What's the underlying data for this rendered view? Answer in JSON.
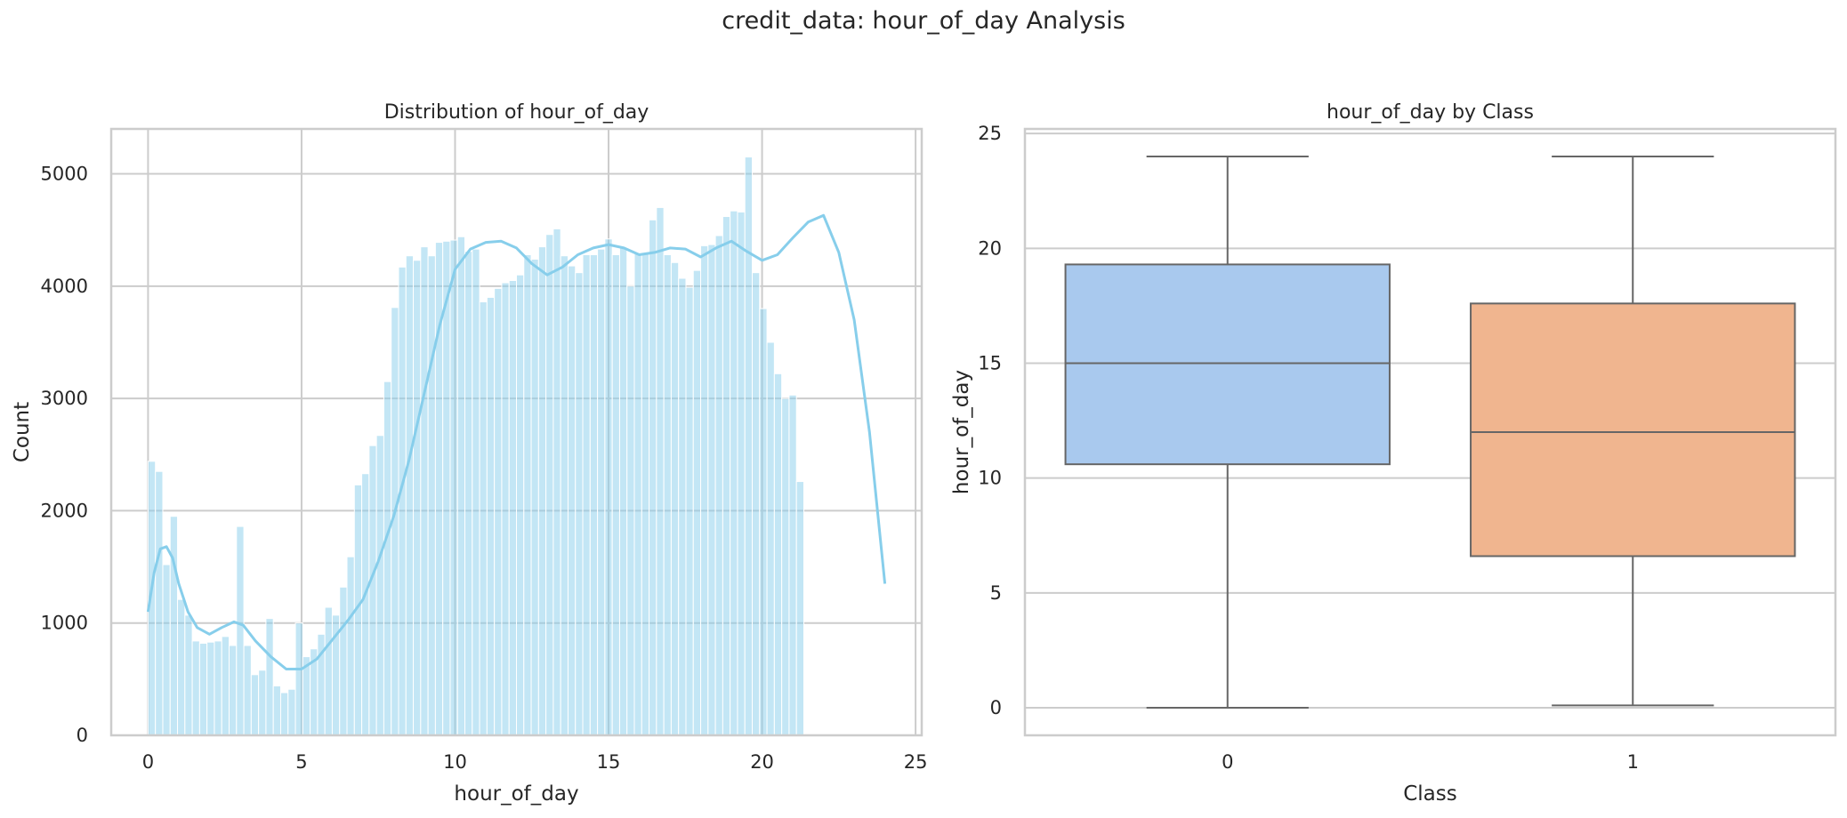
{
  "suptitle": "credit_data: hour_of_day Analysis",
  "chart_data": [
    {
      "type": "histogram",
      "title": "Distribution of hour_of_day",
      "xlabel": "hour_of_day",
      "ylabel": "Count",
      "xlim": [
        -1.2,
        25.2
      ],
      "ylim": [
        0,
        5400
      ],
      "xticks": [
        0,
        5,
        10,
        15,
        20,
        25
      ],
      "yticks": [
        0,
        1000,
        2000,
        3000,
        4000,
        5000
      ],
      "grid": true,
      "bin_start": 0,
      "bin_width": 0.24,
      "counts": [
        2440,
        2350,
        1520,
        1950,
        1210,
        1070,
        840,
        820,
        830,
        840,
        880,
        800,
        1860,
        800,
        540,
        580,
        1040,
        440,
        380,
        410,
        1000,
        700,
        770,
        900,
        1140,
        1070,
        1320,
        1590,
        2230,
        2330,
        2580,
        2670,
        3150,
        3810,
        4170,
        4270,
        4230,
        4350,
        4270,
        4390,
        4400,
        4410,
        4440,
        4310,
        4330,
        3860,
        3900,
        3980,
        4030,
        4050,
        4100,
        4280,
        4240,
        4350,
        4460,
        4510,
        4270,
        4180,
        4120,
        4280,
        4280,
        4330,
        4420,
        4280,
        4340,
        4000,
        4290,
        4300,
        4590,
        4700,
        4280,
        4210,
        4070,
        3990,
        4140,
        4360,
        4370,
        4450,
        4620,
        4670,
        4660,
        5150,
        4120,
        3800,
        3500,
        3220,
        3000,
        3030,
        2260
      ],
      "kde": {
        "x": [
          0,
          0.2,
          0.4,
          0.6,
          0.8,
          1,
          1.3,
          1.6,
          2,
          2.4,
          2.8,
          3.1,
          3.5,
          4,
          4.5,
          5,
          5.5,
          6,
          6.5,
          7,
          7.5,
          8,
          8.5,
          9,
          9.5,
          10,
          10.5,
          11,
          11.5,
          12,
          12.5,
          13,
          13.5,
          14,
          14.5,
          15,
          15.5,
          16,
          16.5,
          17,
          17.5,
          18,
          18.5,
          19,
          19.5,
          20,
          20.5,
          21,
          21.5,
          22,
          22.5,
          23,
          23.5,
          24
        ],
        "y": [
          1100,
          1450,
          1660,
          1680,
          1580,
          1350,
          1100,
          960,
          900,
          960,
          1010,
          980,
          840,
          700,
          590,
          590,
          680,
          850,
          1020,
          1210,
          1550,
          1950,
          2450,
          3050,
          3650,
          4150,
          4330,
          4390,
          4400,
          4340,
          4200,
          4100,
          4170,
          4280,
          4340,
          4370,
          4340,
          4280,
          4300,
          4340,
          4330,
          4260,
          4340,
          4400,
          4310,
          4230,
          4280,
          4430,
          4570,
          4630,
          4300,
          3700,
          2700,
          1350
        ]
      },
      "bar_color": "#87ceeb",
      "line_color": "#87ceeb"
    },
    {
      "type": "box",
      "title": "hour_of_day by Class",
      "xlabel": "Class",
      "ylabel": "hour_of_day",
      "categories": [
        "0",
        "1"
      ],
      "ylim": [
        -1.2,
        25.2
      ],
      "yticks": [
        0,
        5,
        10,
        15,
        20,
        25
      ],
      "grid": true,
      "boxes": [
        {
          "min": 0,
          "q1": 10.6,
          "median": 15,
          "q3": 19.3,
          "max": 24,
          "color": "#a9c9ee"
        },
        {
          "min": 0.1,
          "q1": 6.6,
          "median": 12,
          "q3": 17.6,
          "max": 24,
          "color": "#f0b58f"
        }
      ]
    }
  ]
}
